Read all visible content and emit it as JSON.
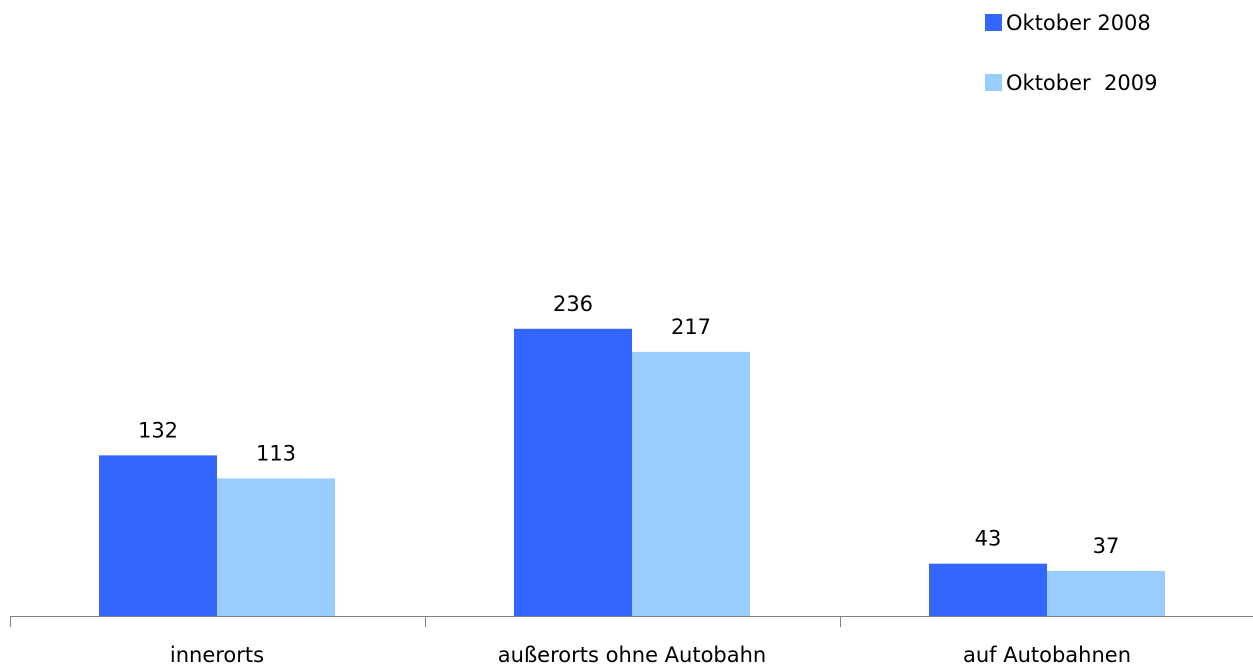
{
  "chart_data": {
    "type": "bar",
    "categories": [
      "innerorts",
      "außerorts ohne Autobahn",
      "auf Autobahnen"
    ],
    "series": [
      {
        "name": "Oktober 2008",
        "values": [
          132,
          236,
          43
        ],
        "color": "#3366ff"
      },
      {
        "name": "Oktober  2009",
        "values": [
          113,
          217,
          37
        ],
        "color": "#99ccff"
      }
    ],
    "ylim": [
      0,
      260
    ],
    "grid": false,
    "legend_position": "top-right",
    "data_labels": true
  }
}
